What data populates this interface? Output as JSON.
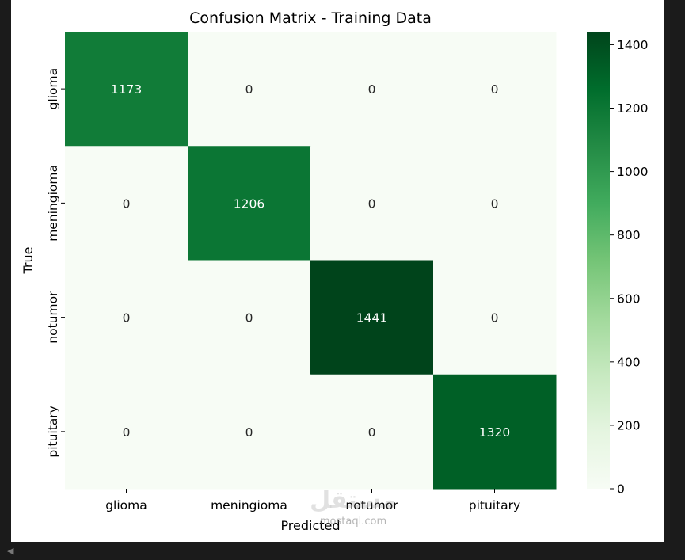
{
  "chart_data": {
    "type": "heatmap",
    "title": "Confusion Matrix - Training Data",
    "xlabel": "Predicted",
    "ylabel": "True",
    "x_categories": [
      "glioma",
      "meningioma",
      "notumor",
      "pituitary"
    ],
    "y_categories": [
      "glioma",
      "meningioma",
      "notumor",
      "pituitary"
    ],
    "values": [
      [
        1173,
        0,
        0,
        0
      ],
      [
        0,
        1206,
        0,
        0
      ],
      [
        0,
        0,
        1441,
        0
      ],
      [
        0,
        0,
        0,
        1320
      ]
    ],
    "colormap": "Greens",
    "colorbar": {
      "range": [
        0,
        1441
      ],
      "ticks": [
        0,
        200,
        400,
        600,
        800,
        1000,
        1200,
        1400
      ]
    },
    "colors": {
      "low": "#f7fcf5",
      "high": "#00441b"
    }
  },
  "watermark": {
    "logo_text": "مستقل",
    "site_text": "mostaql.com"
  },
  "icons": {
    "scroll": "left-arrow-icon"
  }
}
